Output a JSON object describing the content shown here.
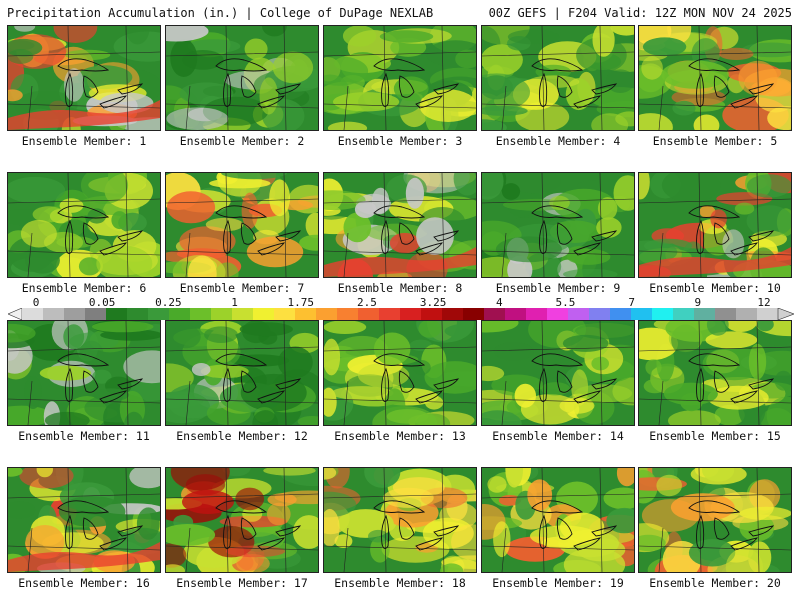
{
  "header": {
    "left": "Precipitation Accumulation (in.) | College of DuPage NEXLAB",
    "right": "00Z GEFS | F204 Valid: 12Z MON NOV 24 2025"
  },
  "colorbar": {
    "tick_labels": [
      "0",
      "0.05",
      "0.25",
      "1",
      "1.75",
      "2.5",
      "3.25",
      "4",
      "5.5",
      "7",
      "9",
      "12"
    ],
    "colors": [
      "#dcdcdc",
      "#bdbdbd",
      "#9e9e9e",
      "#7f7f7f",
      "#1f7a1f",
      "#2e8b2e",
      "#3a9a3a",
      "#4aaa2a",
      "#6cbf2a",
      "#9cd22a",
      "#c8e030",
      "#f0f030",
      "#fde040",
      "#fdc030",
      "#fba030",
      "#f88030",
      "#f06030",
      "#e84030",
      "#d82020",
      "#c01010",
      "#a00808",
      "#880000",
      "#a01050",
      "#c01080",
      "#e020b0",
      "#f040e0",
      "#c060f0",
      "#8080f0",
      "#4090f0",
      "#20c0f0",
      "#20f0f0",
      "#40d0c0",
      "#60b0a0",
      "#909090",
      "#b0b0b0",
      "#d0d0d0"
    ]
  },
  "members": [
    {
      "label": "Ensemble Member: 1",
      "tone": "wet-south"
    },
    {
      "label": "Ensemble Member: 2",
      "tone": "dry"
    },
    {
      "label": "Ensemble Member: 3",
      "tone": "mid"
    },
    {
      "label": "Ensemble Member: 4",
      "tone": "mid"
    },
    {
      "label": "Ensemble Member: 5",
      "tone": "wet"
    },
    {
      "label": "Ensemble Member: 6",
      "tone": "mid"
    },
    {
      "label": "Ensemble Member: 7",
      "tone": "wet"
    },
    {
      "label": "Ensemble Member: 8",
      "tone": "wet-south"
    },
    {
      "label": "Ensemble Member: 9",
      "tone": "dry"
    },
    {
      "label": "Ensemble Member: 10",
      "tone": "wet-south"
    },
    {
      "label": "Ensemble Member: 11",
      "tone": "dry"
    },
    {
      "label": "Ensemble Member: 12",
      "tone": "dry"
    },
    {
      "label": "Ensemble Member: 13",
      "tone": "mid"
    },
    {
      "label": "Ensemble Member: 14",
      "tone": "mid"
    },
    {
      "label": "Ensemble Member: 15",
      "tone": "mid"
    },
    {
      "label": "Ensemble Member: 16",
      "tone": "wet-south"
    },
    {
      "label": "Ensemble Member: 17",
      "tone": "wet-north"
    },
    {
      "label": "Ensemble Member: 18",
      "tone": "wet"
    },
    {
      "label": "Ensemble Member: 19",
      "tone": "wet"
    },
    {
      "label": "Ensemble Member: 20",
      "tone": "wet"
    }
  ]
}
